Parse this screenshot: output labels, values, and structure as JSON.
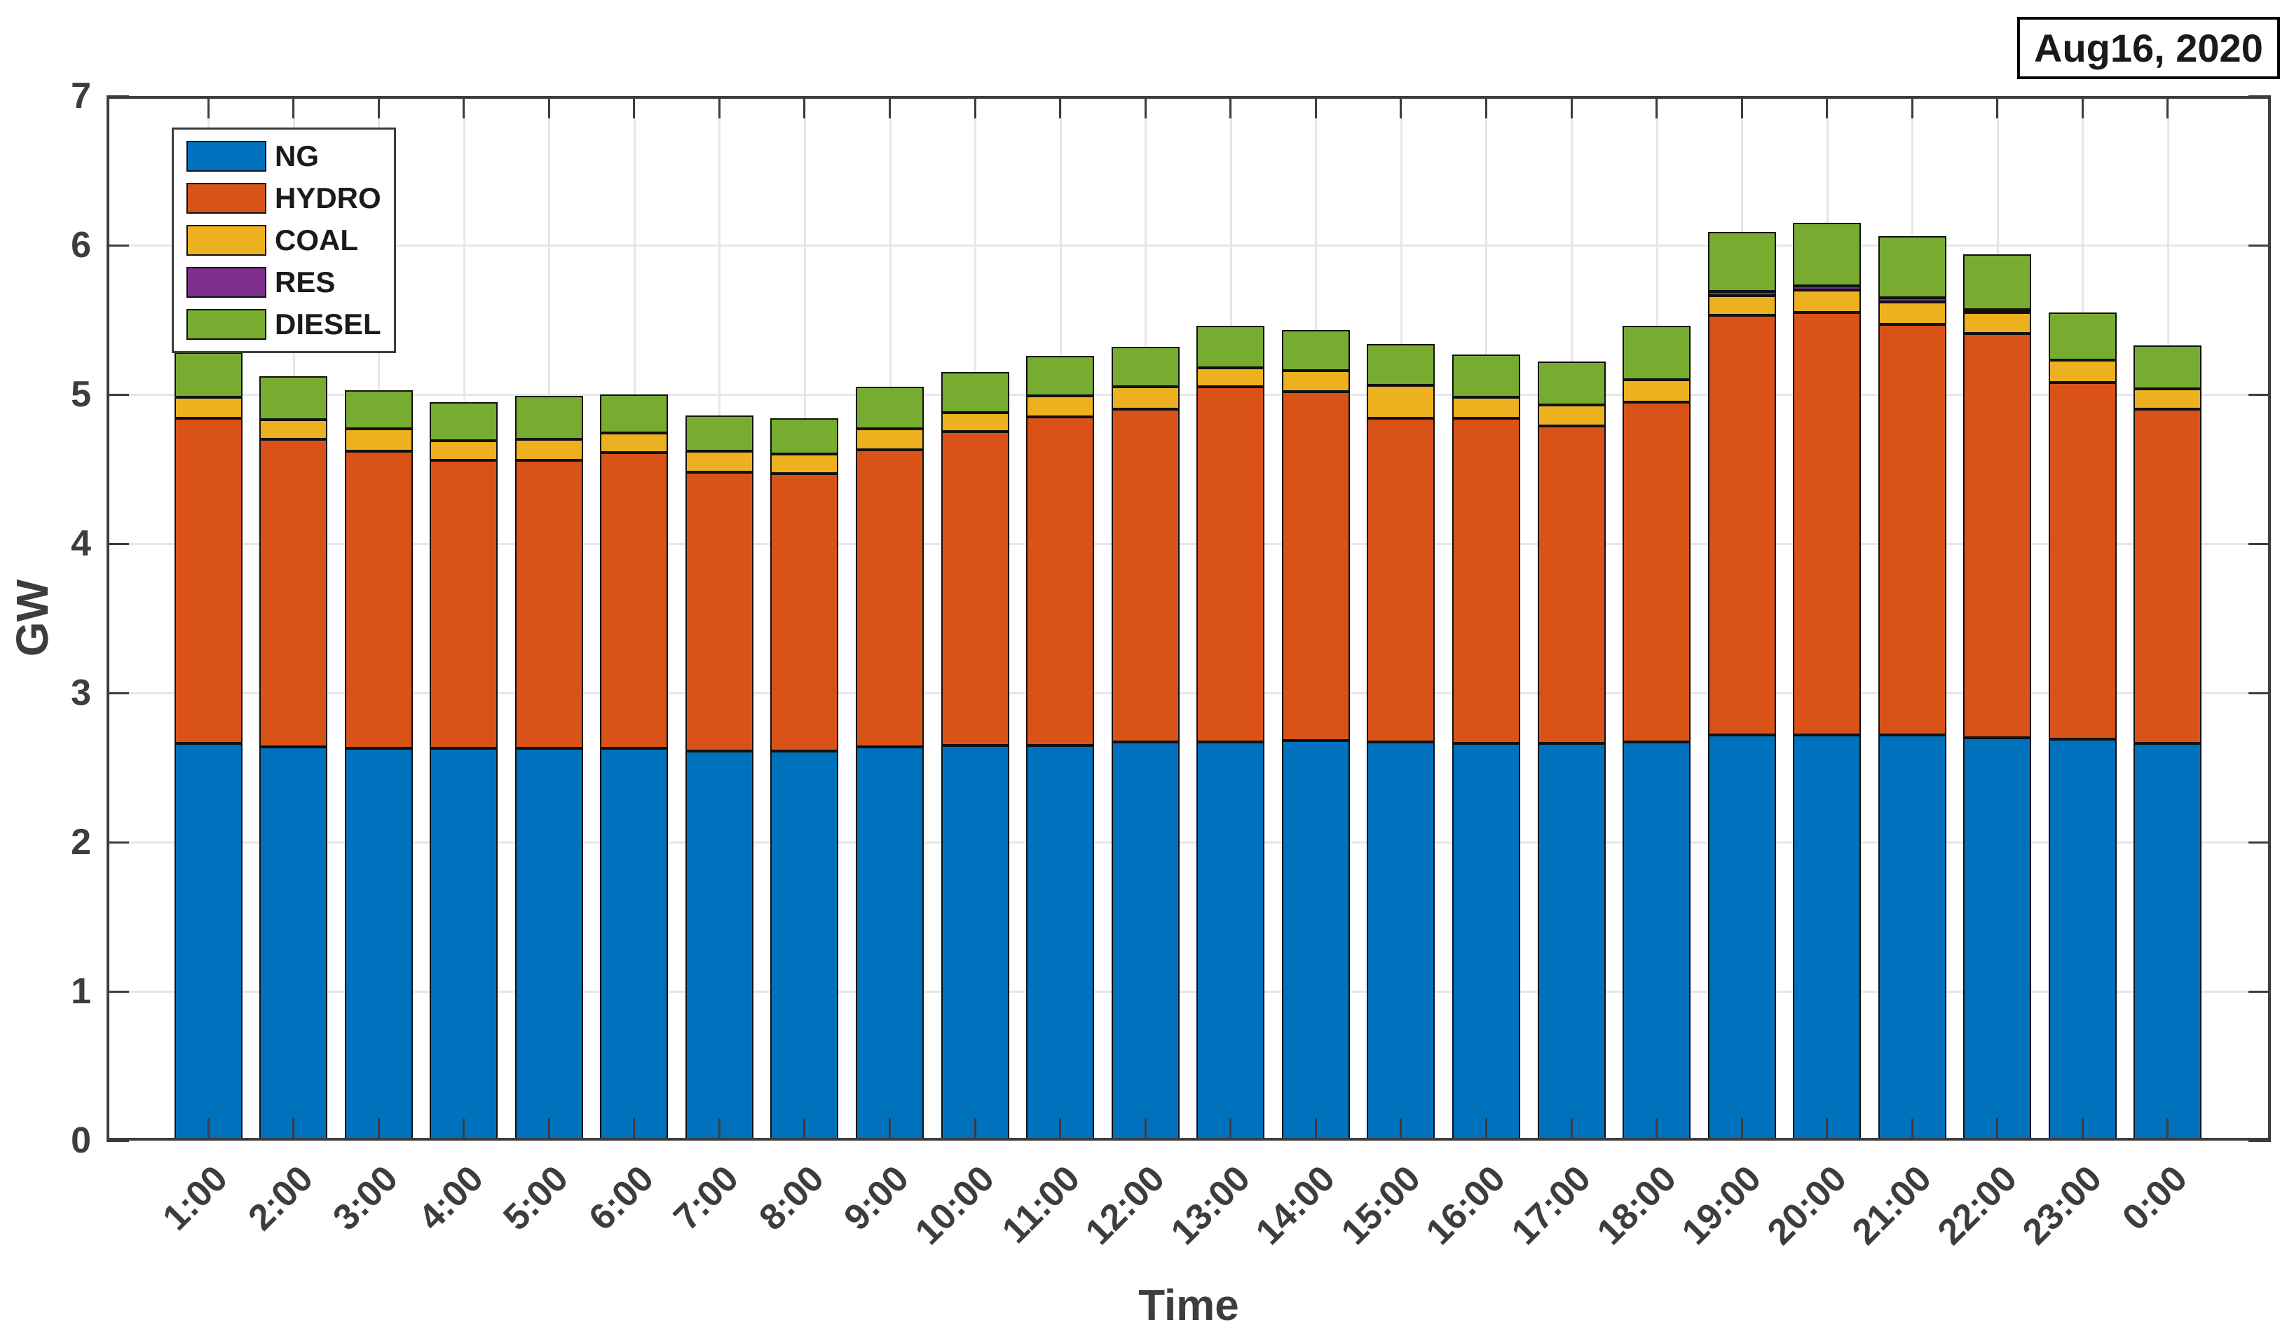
{
  "header": {
    "date_label": "Aug16, 2020"
  },
  "axes": {
    "y_label": "GW",
    "x_label": "Time",
    "y_ticks": [
      "0",
      "1",
      "2",
      "3",
      "4",
      "5",
      "6",
      "7"
    ],
    "y_max": 7
  },
  "chart_data": {
    "type": "bar",
    "stacked": true,
    "title": "Aug16, 2020",
    "xlabel": "Time",
    "ylabel": "GW",
    "ylim": [
      0,
      7
    ],
    "grid": true,
    "legend_position": "top-left",
    "bar_edge_color": "#111111",
    "axis_color": "#3d3d3d",
    "grid_color": "#e7e7e7",
    "categories": [
      "1:00",
      "2:00",
      "3:00",
      "4:00",
      "5:00",
      "6:00",
      "7:00",
      "8:00",
      "9:00",
      "10:00",
      "11:00",
      "12:00",
      "13:00",
      "14:00",
      "15:00",
      "16:00",
      "17:00",
      "18:00",
      "19:00",
      "20:00",
      "21:00",
      "22:00",
      "23:00",
      "0:00"
    ],
    "series": [
      {
        "name": "NG",
        "color": "#0072BD",
        "values": [
          2.66,
          2.64,
          2.63,
          2.63,
          2.63,
          2.63,
          2.61,
          2.61,
          2.64,
          2.65,
          2.65,
          2.67,
          2.67,
          2.68,
          2.67,
          2.66,
          2.66,
          2.67,
          2.72,
          2.72,
          2.72,
          2.7,
          2.69,
          2.66
        ]
      },
      {
        "name": "HYDRO",
        "color": "#D95319",
        "values": [
          2.18,
          2.06,
          1.99,
          1.93,
          1.93,
          1.98,
          1.87,
          1.86,
          1.99,
          2.1,
          2.2,
          2.23,
          2.38,
          2.34,
          2.17,
          2.18,
          2.13,
          2.28,
          2.81,
          2.83,
          2.75,
          2.71,
          2.39,
          2.24
        ]
      },
      {
        "name": "COAL",
        "color": "#EDB120",
        "values": [
          0.14,
          0.13,
          0.15,
          0.13,
          0.14,
          0.13,
          0.14,
          0.13,
          0.14,
          0.13,
          0.14,
          0.15,
          0.13,
          0.14,
          0.22,
          0.14,
          0.14,
          0.15,
          0.13,
          0.15,
          0.15,
          0.14,
          0.15,
          0.14
        ]
      },
      {
        "name": "RES",
        "color": "#7E2F8E",
        "values": [
          0,
          0,
          0,
          0,
          0,
          0,
          0,
          0,
          0,
          0,
          0,
          0,
          0,
          0,
          0,
          0,
          0,
          0,
          0.03,
          0.03,
          0.03,
          0.02,
          0,
          0
        ]
      },
      {
        "name": "DIESEL",
        "color": "#77AC30",
        "values": [
          0.3,
          0.29,
          0.26,
          0.26,
          0.29,
          0.26,
          0.24,
          0.24,
          0.28,
          0.27,
          0.27,
          0.27,
          0.28,
          0.27,
          0.28,
          0.29,
          0.29,
          0.36,
          0.4,
          0.42,
          0.41,
          0.37,
          0.32,
          0.29
        ]
      }
    ]
  }
}
